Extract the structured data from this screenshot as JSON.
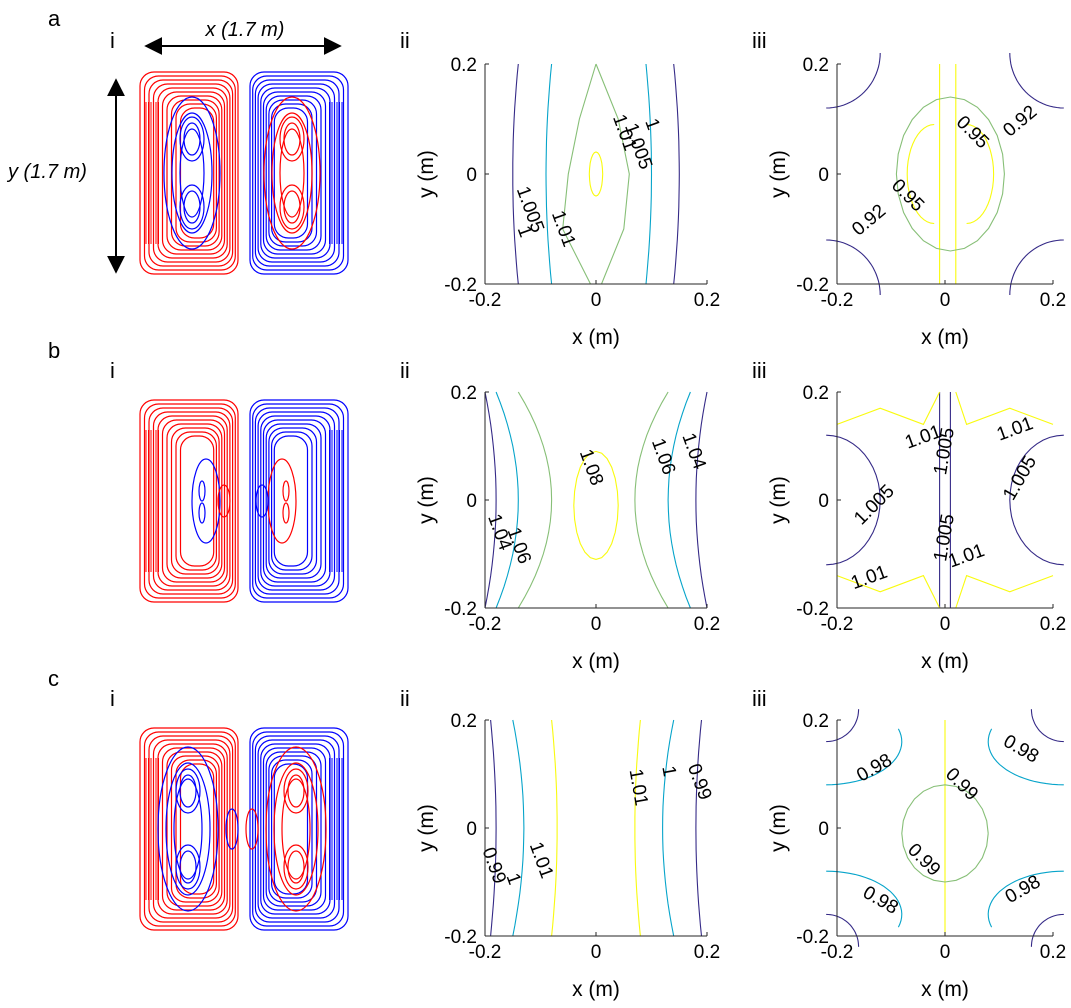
{
  "rows": [
    {
      "label": "a",
      "panel_i": "i",
      "panel_ii": "ii",
      "panel_iii": "iii",
      "x_annotation": "x (1.7 m)",
      "y_annotation": "y (1.7 m)"
    },
    {
      "label": "b",
      "panel_i": "i",
      "panel_ii": "ii",
      "panel_iii": "iii"
    },
    {
      "label": "c",
      "panel_i": "i",
      "panel_ii": "ii",
      "panel_iii": "iii"
    }
  ],
  "colors": {
    "positive_contours": "#ff0000",
    "negative_contours": "#0000ff",
    "parula": [
      "#352a87",
      "#0f5cdd",
      "#1481d6",
      "#06a4ca",
      "#2eb7a4",
      "#87bf77",
      "#d1bb59",
      "#fec832",
      "#f9fb0e"
    ]
  },
  "chart_data": [
    {
      "type": "contour",
      "panel": "a-i",
      "title": "",
      "description_labels": [
        "x (1.7 m)",
        "y (1.7 m)"
      ],
      "colors": [
        "red",
        "blue"
      ]
    },
    {
      "type": "contour",
      "panel": "a-ii",
      "xlabel": "x (m)",
      "ylabel": "y (m)",
      "xlim": [
        -0.2,
        0.2
      ],
      "ylim": [
        -0.2,
        0.2
      ],
      "xticks": [
        "-0.2",
        "0",
        "0.2"
      ],
      "yticks": [
        "0.2",
        "0",
        "-0.2"
      ],
      "contour_labels": [
        "1",
        "1.005",
        "1.01",
        "1.01",
        "1.005",
        "1"
      ]
    },
    {
      "type": "contour",
      "panel": "a-iii",
      "xlabel": "x (m)",
      "ylabel": "y (m)",
      "xlim": [
        -0.2,
        0.2
      ],
      "ylim": [
        -0.2,
        0.2
      ],
      "xticks": [
        "-0.2",
        "0",
        "0.2"
      ],
      "yticks": [
        "0.2",
        "0",
        "-0.2"
      ],
      "contour_labels": [
        "0.92",
        "0.95",
        "0.95",
        "0.92"
      ]
    },
    {
      "type": "contour",
      "panel": "b-i",
      "colors": [
        "red",
        "blue"
      ]
    },
    {
      "type": "contour",
      "panel": "b-ii",
      "xlabel": "x (m)",
      "ylabel": "y (m)",
      "xlim": [
        -0.2,
        0.2
      ],
      "ylim": [
        -0.2,
        0.2
      ],
      "xticks": [
        "-0.2",
        "0",
        "0.2"
      ],
      "yticks": [
        "0.2",
        "0",
        "-0.2"
      ],
      "contour_labels": [
        "1.08",
        "1.06",
        "1.04",
        "1.06",
        "1.04"
      ]
    },
    {
      "type": "contour",
      "panel": "b-iii",
      "xlabel": "x (m)",
      "ylabel": "y (m)",
      "xlim": [
        -0.2,
        0.2
      ],
      "ylim": [
        -0.2,
        0.2
      ],
      "xticks": [
        "-0.2",
        "0",
        "0.2"
      ],
      "yticks": [
        "0.2",
        "0",
        "-0.2"
      ],
      "contour_labels": [
        "1.01",
        "1.01",
        "1.005",
        "1.005",
        "1.005",
        "1.005",
        "1.01",
        "1.01"
      ]
    },
    {
      "type": "contour",
      "panel": "c-i",
      "colors": [
        "red",
        "blue"
      ]
    },
    {
      "type": "contour",
      "panel": "c-ii",
      "xlabel": "x (m)",
      "ylabel": "y (m)",
      "xlim": [
        -0.2,
        0.2
      ],
      "ylim": [
        -0.2,
        0.2
      ],
      "xticks": [
        "-0.2",
        "0",
        "0.2"
      ],
      "yticks": [
        "0.2",
        "0",
        "-0.2"
      ],
      "contour_labels": [
        "0.99",
        "1",
        "1.01",
        "1.01",
        "1",
        "0.99"
      ]
    },
    {
      "type": "contour",
      "panel": "c-iii",
      "xlabel": "x (m)",
      "ylabel": "y (m)",
      "xlim": [
        -0.2,
        0.2
      ],
      "ylim": [
        -0.2,
        0.2
      ],
      "xticks": [
        "-0.2",
        "0",
        "0.2"
      ],
      "yticks": [
        "0.2",
        "0",
        "-0.2"
      ],
      "contour_labels": [
        "0.98",
        "0.99",
        "0.98",
        "0.99",
        "0.98",
        "0.98"
      ]
    }
  ]
}
